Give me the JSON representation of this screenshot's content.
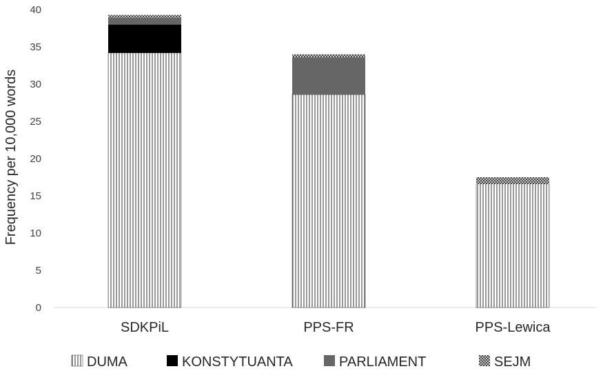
{
  "chart_data": {
    "type": "bar",
    "stacked": true,
    "ylabel": "Frequency per 10,000 words",
    "xlabel": "",
    "ylim": [
      0,
      40
    ],
    "yticks": [
      0,
      5,
      10,
      15,
      20,
      25,
      30,
      35,
      40
    ],
    "categories": [
      "SDKPiL",
      "PPS-FR",
      "PPS-Lewica"
    ],
    "series": [
      {
        "name": "DUMA",
        "values": [
          34.2,
          28.6,
          16.6
        ],
        "color": "#ffffff",
        "pattern": "vertical-lines"
      },
      {
        "name": "KONSTYTUANTA",
        "values": [
          3.8,
          0.0,
          0.0
        ],
        "color": "#000000",
        "pattern": "solid"
      },
      {
        "name": "PARLIAMENT",
        "values": [
          0.9,
          5.0,
          0.0
        ],
        "color": "#666666",
        "pattern": "solid"
      },
      {
        "name": "SEJM",
        "values": [
          0.4,
          0.4,
          0.9
        ],
        "color": "#444444",
        "pattern": "crosshatch"
      }
    ],
    "grid": false,
    "legend_position": "bottom"
  }
}
